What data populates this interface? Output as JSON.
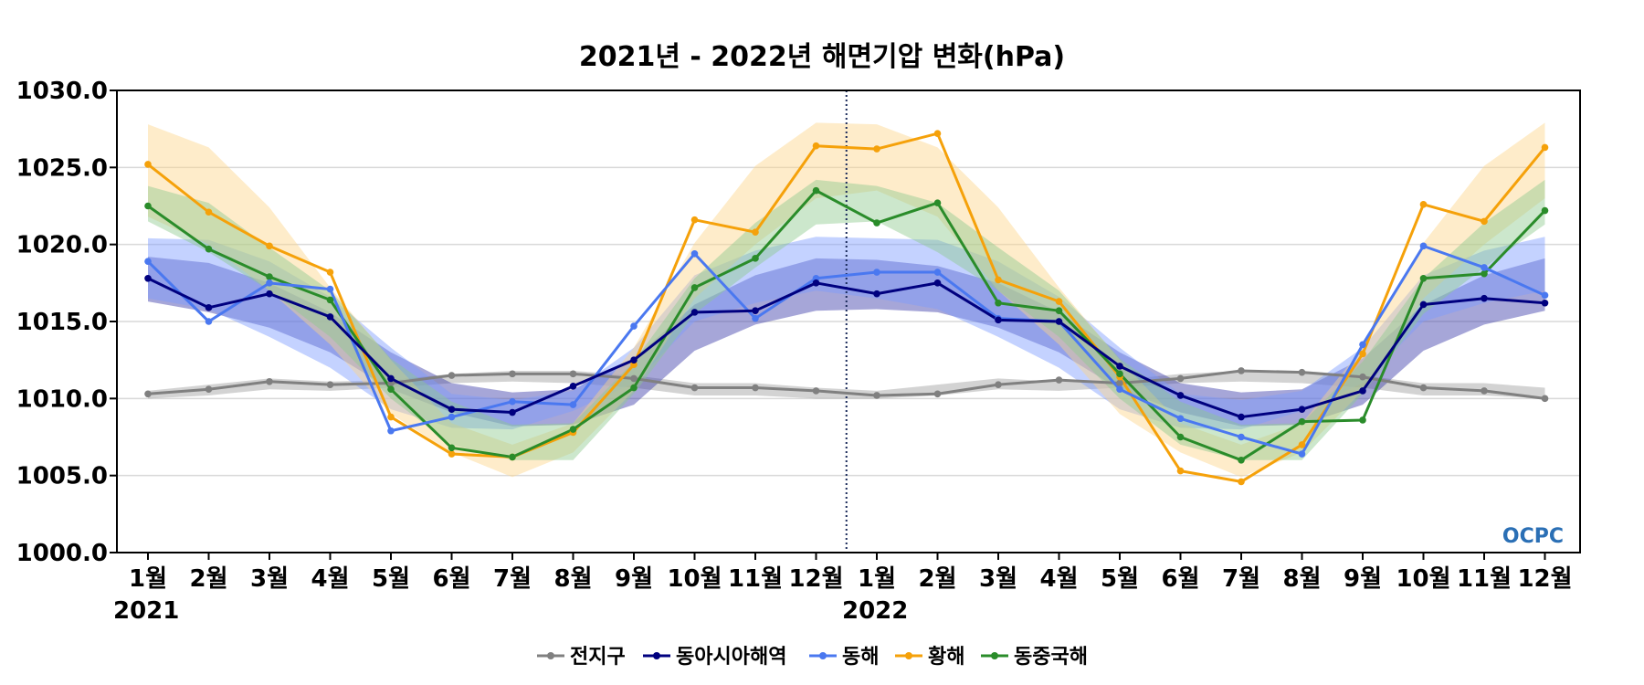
{
  "chart_data": {
    "type": "line",
    "title": "2021년 - 2022년 해면기압 변화(hPa)",
    "ylim": [
      1000.0,
      1030.0
    ],
    "yticks": [
      "1000.0",
      "1005.0",
      "1010.0",
      "1015.0",
      "1020.0",
      "1025.0",
      "1030.0"
    ],
    "categories": [
      "1월",
      "2월",
      "3월",
      "4월",
      "5월",
      "6월",
      "7월",
      "8월",
      "9월",
      "10월",
      "11월",
      "12월",
      "1월",
      "2월",
      "3월",
      "4월",
      "5월",
      "6월",
      "7월",
      "8월",
      "9월",
      "10월",
      "11월",
      "12월"
    ],
    "year_labels": [
      {
        "index": 0,
        "label": "2021"
      },
      {
        "index": 12,
        "label": "2022"
      }
    ],
    "divider_between": [
      11,
      12
    ],
    "grid": true,
    "legend_position": "bottom-center",
    "watermark": "OCPC",
    "series": [
      {
        "name": "전지구",
        "color": "#808080",
        "values": [
          1010.3,
          1010.6,
          1011.1,
          1010.9,
          1011.0,
          1011.5,
          1011.6,
          1011.6,
          1011.3,
          1010.7,
          1010.7,
          1010.5,
          1010.2,
          1010.3,
          1010.9,
          1011.2,
          1011.0,
          1011.3,
          1011.8,
          1011.7,
          1011.4,
          1010.7,
          1010.5,
          1010.0
        ],
        "band_low": [
          1010.0,
          1010.2,
          1010.6,
          1010.5,
          1010.7,
          1011.0,
          1011.1,
          1011.0,
          1010.7,
          1010.2,
          1010.2,
          1010.0,
          1010.0,
          1010.2,
          1010.6,
          1010.5,
          1010.7,
          1011.0,
          1011.1,
          1011.0,
          1010.7,
          1010.2,
          1010.2,
          1010.0
        ],
        "band_high": [
          1010.5,
          1010.9,
          1011.3,
          1011.1,
          1011.2,
          1011.6,
          1011.8,
          1011.8,
          1011.5,
          1011.0,
          1011.0,
          1010.7,
          1010.5,
          1010.9,
          1011.3,
          1011.1,
          1011.2,
          1011.6,
          1011.8,
          1011.8,
          1011.5,
          1011.0,
          1011.0,
          1010.7
        ]
      },
      {
        "name": "동아시아해역",
        "color": "#00007f",
        "band_color": "#3a3aa8",
        "values": [
          1017.8,
          1015.9,
          1016.8,
          1015.3,
          1011.3,
          1009.3,
          1009.1,
          1010.8,
          1012.5,
          1015.6,
          1015.7,
          1017.5,
          1016.8,
          1017.5,
          1015.1,
          1015.0,
          1012.1,
          1010.2,
          1008.8,
          1009.3,
          1010.5,
          1016.1,
          1016.5,
          1016.2
        ],
        "band_low": [
          1016.3,
          1015.6,
          1014.6,
          1013.0,
          1010.6,
          1009.1,
          1008.2,
          1008.3,
          1009.6,
          1013.1,
          1014.8,
          1015.7,
          1015.8,
          1015.6,
          1014.6,
          1013.0,
          1010.6,
          1009.1,
          1008.2,
          1008.3,
          1009.6,
          1013.1,
          1014.8,
          1015.7
        ],
        "band_high": [
          1019.2,
          1018.8,
          1017.5,
          1015.6,
          1013.0,
          1011.0,
          1010.4,
          1010.6,
          1012.6,
          1016.1,
          1018.0,
          1019.1,
          1019.0,
          1018.6,
          1017.5,
          1015.6,
          1013.0,
          1011.0,
          1010.4,
          1010.6,
          1012.6,
          1016.1,
          1018.0,
          1019.1
        ]
      },
      {
        "name": "동해",
        "color": "#4a78f0",
        "band_color": "#7d9cff",
        "values": [
          1018.9,
          1015.0,
          1017.5,
          1017.1,
          1007.9,
          1008.8,
          1009.8,
          1009.6,
          1014.7,
          1019.4,
          1015.2,
          1017.8,
          1018.2,
          1018.2,
          1015.2,
          1015.0,
          1010.6,
          1008.7,
          1007.5,
          1006.4,
          1013.5,
          1019.9,
          1018.5,
          1016.7
        ],
        "band_low": [
          1016.5,
          1015.8,
          1014.0,
          1012.0,
          1009.3,
          1008.1,
          1008.0,
          1009.2,
          1011.0,
          1015.0,
          1016.2,
          1017.0,
          1016.5,
          1015.8,
          1014.0,
          1012.0,
          1009.3,
          1008.1,
          1008.0,
          1009.2,
          1011.0,
          1015.0,
          1016.2,
          1017.0
        ],
        "band_high": [
          1020.4,
          1020.3,
          1018.9,
          1016.6,
          1013.3,
          1010.3,
          1009.9,
          1010.5,
          1013.3,
          1018.0,
          1019.6,
          1020.5,
          1020.4,
          1020.3,
          1018.9,
          1016.6,
          1013.3,
          1010.3,
          1009.9,
          1010.5,
          1013.3,
          1018.0,
          1019.6,
          1020.5
        ]
      },
      {
        "name": "황해",
        "color": "#f5a10a",
        "band_color": "#fdd48a",
        "values": [
          1025.2,
          1022.1,
          1019.9,
          1018.2,
          1008.8,
          1006.4,
          1006.2,
          1007.8,
          1012.2,
          1021.6,
          1020.8,
          1026.4,
          1026.2,
          1027.2,
          1017.7,
          1016.3,
          1011.4,
          1005.3,
          1004.6,
          1007.0,
          1012.9,
          1022.6,
          1021.5,
          1026.3
        ],
        "band_low": [
          1021.8,
          1020.0,
          1017.0,
          1013.5,
          1009.0,
          1006.5,
          1004.9,
          1006.5,
          1010.5,
          1016.5,
          1020.0,
          1023.0,
          1023.5,
          1021.8,
          1017.0,
          1013.5,
          1009.0,
          1006.5,
          1004.9,
          1006.5,
          1010.5,
          1016.5,
          1020.0,
          1023.0
        ],
        "band_high": [
          1027.8,
          1026.3,
          1022.4,
          1017.2,
          1012.5,
          1008.4,
          1007.0,
          1008.4,
          1013.3,
          1020.1,
          1025.1,
          1027.9,
          1027.8,
          1026.3,
          1022.4,
          1017.2,
          1012.5,
          1008.4,
          1007.0,
          1008.4,
          1013.3,
          1020.1,
          1025.1,
          1027.9
        ]
      },
      {
        "name": "동중국해",
        "color": "#2a8c2a",
        "band_color": "#8fca8f",
        "values": [
          1022.5,
          1019.7,
          1017.9,
          1016.4,
          1010.6,
          1006.8,
          1006.2,
          1008.0,
          1010.7,
          1017.2,
          1019.1,
          1023.5,
          1021.4,
          1022.7,
          1016.2,
          1015.7,
          1011.6,
          1007.5,
          1006.0,
          1008.5,
          1008.6,
          1017.8,
          1018.1,
          1022.2
        ],
        "band_low": [
          1021.5,
          1019.5,
          1017.0,
          1014.0,
          1010.0,
          1007.0,
          1006.0,
          1006.0,
          1010.3,
          1015.5,
          1018.5,
          1021.3,
          1021.5,
          1019.5,
          1017.0,
          1014.0,
          1010.0,
          1007.0,
          1006.0,
          1006.0,
          1010.3,
          1015.5,
          1018.5,
          1021.3
        ],
        "band_high": [
          1023.8,
          1022.7,
          1019.8,
          1017.0,
          1012.6,
          1009.8,
          1008.3,
          1008.4,
          1012.4,
          1017.8,
          1021.4,
          1024.2,
          1023.8,
          1022.7,
          1019.8,
          1017.0,
          1012.6,
          1009.8,
          1008.3,
          1008.4,
          1012.4,
          1017.8,
          1021.4,
          1024.2
        ]
      }
    ]
  }
}
